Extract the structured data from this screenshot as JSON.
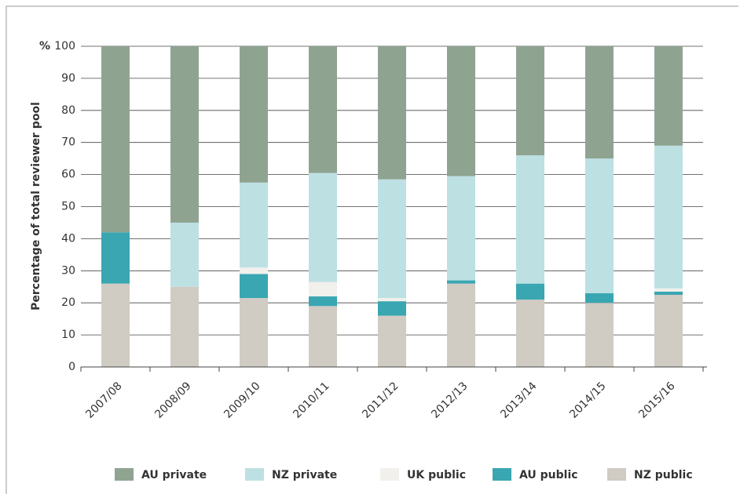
{
  "chart_data": {
    "type": "stacked_bar",
    "y_unit": "%",
    "y_label": "Percentage of total reviewer pool",
    "categories": [
      "2007/08",
      "2008/09",
      "2009/10",
      "2010/11",
      "2011/12",
      "2012/13",
      "2013/14",
      "2014/15",
      "2015/16"
    ],
    "series": [
      {
        "name": "AU private",
        "color": "#8fa391",
        "values": [
          58,
          55,
          42.5,
          39.5,
          41.5,
          40.5,
          34,
          35,
          31
        ]
      },
      {
        "name": "NZ private",
        "color": "#bde0e3",
        "values": [
          0,
          20,
          26.5,
          34,
          37,
          32.5,
          40,
          42,
          44.5
        ]
      },
      {
        "name": "UK public",
        "color": "#f1f0ec",
        "values": [
          0,
          0,
          2,
          4.5,
          1,
          0,
          0,
          0,
          1
        ]
      },
      {
        "name": "AU public",
        "color": "#39a6b2",
        "values": [
          16,
          0,
          7.5,
          3,
          4.5,
          1,
          5,
          3,
          1
        ]
      },
      {
        "name": "NZ public",
        "color": "#d0cbc3",
        "values": [
          26,
          25,
          21.5,
          19,
          16,
          26,
          21,
          20,
          22.5
        ]
      }
    ],
    "ylim": [
      0,
      100
    ],
    "yticks": [
      0,
      10,
      20,
      30,
      40,
      50,
      60,
      70,
      80,
      90,
      100
    ],
    "grid": true
  }
}
